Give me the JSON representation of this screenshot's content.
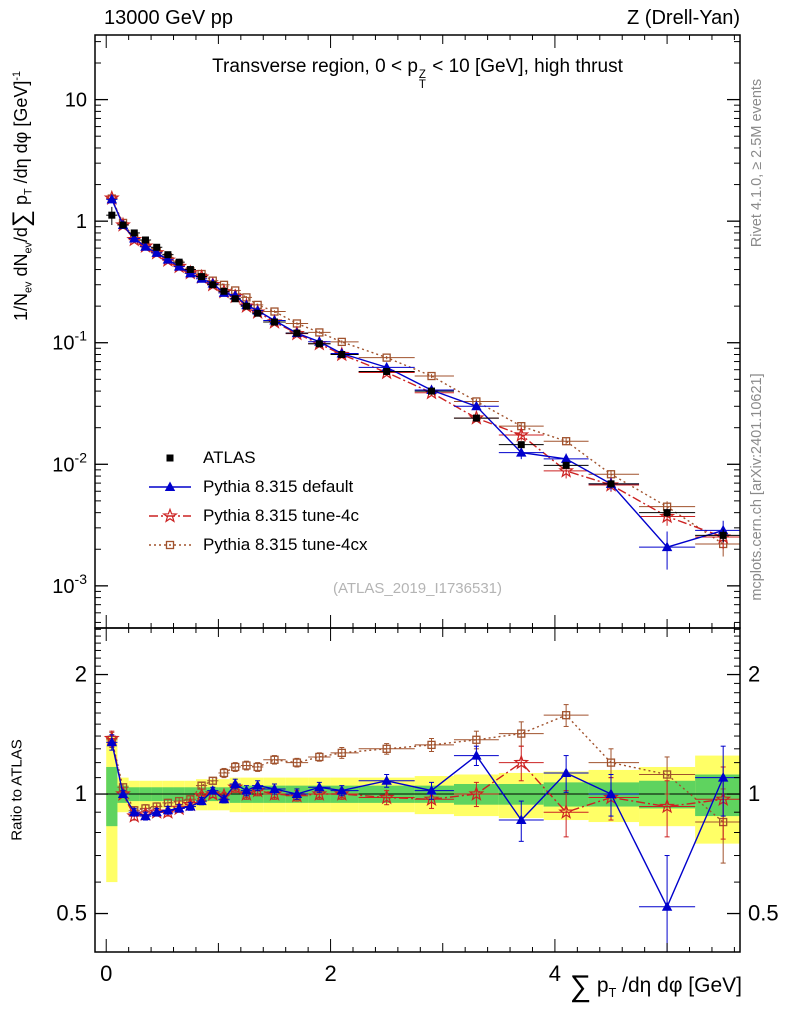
{
  "header": {
    "left": "13000 GeV pp",
    "right": "Z (Drell-Yan)"
  },
  "side_notes": {
    "top": "Rivet 4.1.0, ≥ 2.5M events",
    "bottom": "mcplots.cern.ch [arXiv:2401.10621]"
  },
  "watermark": "(ATLAS_2019_I1736531)",
  "panel_title": {
    "pre": "Transverse region, 0 < p",
    "sup": "Z",
    "sub": "T",
    "post": " < 10 [GeV], high thrust"
  },
  "axes": {
    "y_main_label": {
      "p1": "1/N",
      "sub1": "ev",
      "p2": " dN",
      "sub2": "ev",
      "p3": "/d",
      "sum": "∑",
      "p4": " p",
      "sub3": "T",
      "p5": " /dη dφ  [GeV]",
      "sup1": "-1"
    },
    "y_ratio_label": "Ratio to ATLAS",
    "x_label": {
      "sum": "∑",
      "p1": " p",
      "sub1": "T",
      "p2": " /dη dφ [GeV]"
    }
  },
  "chart_data": {
    "type": "line",
    "title": "Transverse region, 0 < pT(Z) < 10 [GeV], high thrust",
    "xlabel": "Sum pT /deta dphi [GeV]",
    "ylabel": "1/Nev dNev/d Sum pT/deta dphi [GeV]^-1",
    "ylabel_ratio": "Ratio to ATLAS",
    "legend_position": "middle-left",
    "grid": false,
    "x_range": [
      -0.1,
      5.65
    ],
    "main": {
      "y_scale": "log",
      "y_range": [
        0.00045,
        34
      ],
      "y_tick_exponents": [
        1,
        0,
        -1,
        -2,
        -3
      ]
    },
    "ratio": {
      "y_scale": "log",
      "y_range": [
        0.4,
        2.62
      ],
      "y_ticks": [
        0.5,
        1,
        2
      ]
    },
    "x_major_ticks": [
      0,
      2,
      4
    ],
    "x_minor_step": 0.2,
    "bin_edges": [
      0,
      0.1,
      0.2,
      0.3,
      0.4,
      0.5,
      0.6,
      0.7,
      0.8,
      0.9,
      1.0,
      1.1,
      1.2,
      1.3,
      1.4,
      1.6,
      1.8,
      2.0,
      2.25,
      2.75,
      3.1,
      3.5,
      3.9,
      4.3,
      4.75,
      5.25,
      5.75
    ],
    "x": [
      0.05,
      0.15,
      0.25,
      0.35,
      0.45,
      0.55,
      0.65,
      0.75,
      0.85,
      0.95,
      1.05,
      1.15,
      1.25,
      1.35,
      1.5,
      1.7,
      1.9,
      2.1,
      2.5,
      2.9,
      3.3,
      3.7,
      4.1,
      4.5,
      5.0,
      5.5
    ],
    "series": [
      {
        "name": "ATLAS",
        "color": "#000000",
        "marker": "square-filled",
        "line": "none",
        "y": [
          1.12,
          0.93,
          0.8,
          0.7,
          0.61,
          0.53,
          0.46,
          0.4,
          0.35,
          0.3,
          0.265,
          0.23,
          0.2,
          0.175,
          0.148,
          0.12,
          0.098,
          0.08,
          0.058,
          0.04,
          0.024,
          0.0145,
          0.0098,
          0.0069,
          0.004,
          0.0026
        ]
      },
      {
        "name": "Pythia 8.315 default",
        "color": "#0000cc",
        "marker": "triangle-filled",
        "line": "solid",
        "ratio": [
          1.35,
          1.0,
          0.9,
          0.88,
          0.9,
          0.91,
          0.92,
          0.93,
          0.96,
          1.02,
          0.97,
          1.06,
          1.02,
          1.05,
          1.03,
          1.0,
          1.04,
          1.02,
          1.08,
          1.02,
          1.25,
          0.86,
          1.13,
          1.0,
          0.52,
          1.1
        ],
        "ratio_err": [
          0.06,
          0.02,
          0.02,
          0.02,
          0.02,
          0.02,
          0.02,
          0.02,
          0.02,
          0.02,
          0.02,
          0.03,
          0.03,
          0.03,
          0.03,
          0.03,
          0.03,
          0.03,
          0.04,
          0.05,
          0.07,
          0.1,
          0.12,
          0.12,
          0.18,
          0.22
        ]
      },
      {
        "name": "Pythia 8.315 tune-4c",
        "color": "#cc2222",
        "marker": "star",
        "line": "dashdot",
        "ratio": [
          1.38,
          1.0,
          0.88,
          0.89,
          0.9,
          0.9,
          0.92,
          0.94,
          0.99,
          1.0,
          0.99,
          1.04,
          1.0,
          1.02,
          1.0,
          0.99,
          1.0,
          1.0,
          0.98,
          0.97,
          1.0,
          1.2,
          0.9,
          0.98,
          0.93,
          0.97
        ],
        "ratio_err": [
          0.06,
          0.02,
          0.02,
          0.02,
          0.02,
          0.02,
          0.02,
          0.02,
          0.02,
          0.02,
          0.02,
          0.03,
          0.03,
          0.03,
          0.03,
          0.03,
          0.03,
          0.03,
          0.04,
          0.05,
          0.07,
          0.12,
          0.12,
          0.12,
          0.15,
          0.2
        ]
      },
      {
        "name": "Pythia 8.315 tune-4cx",
        "color": "#a0522d",
        "marker": "square-open",
        "line": "dotted",
        "ratio": [
          1.37,
          1.04,
          0.91,
          0.92,
          0.93,
          0.95,
          0.96,
          0.97,
          1.05,
          1.08,
          1.13,
          1.17,
          1.18,
          1.17,
          1.22,
          1.2,
          1.24,
          1.27,
          1.3,
          1.33,
          1.37,
          1.42,
          1.58,
          1.2,
          1.12,
          0.85
        ],
        "ratio_err": [
          0.06,
          0.02,
          0.02,
          0.02,
          0.02,
          0.02,
          0.02,
          0.02,
          0.02,
          0.02,
          0.03,
          0.03,
          0.03,
          0.03,
          0.03,
          0.03,
          0.03,
          0.04,
          0.04,
          0.05,
          0.07,
          0.1,
          0.1,
          0.1,
          0.12,
          0.18
        ]
      }
    ],
    "bands": {
      "yellow": {
        "color": "#ffff66",
        "half_widths": [
          0.4,
          0.1,
          0.08,
          0.08,
          0.08,
          0.08,
          0.08,
          0.08,
          0.09,
          0.09,
          0.09,
          0.1,
          0.1,
          0.1,
          0.1,
          0.1,
          0.1,
          0.1,
          0.1,
          0.11,
          0.12,
          0.13,
          0.14,
          0.15,
          0.17,
          0.25
        ]
      },
      "green": {
        "color": "#5fd35f",
        "half_widths": [
          0.17,
          0.05,
          0.04,
          0.04,
          0.04,
          0.04,
          0.04,
          0.04,
          0.04,
          0.04,
          0.04,
          0.05,
          0.05,
          0.05,
          0.05,
          0.05,
          0.05,
          0.05,
          0.05,
          0.05,
          0.06,
          0.06,
          0.07,
          0.07,
          0.08,
          0.12
        ]
      }
    }
  }
}
